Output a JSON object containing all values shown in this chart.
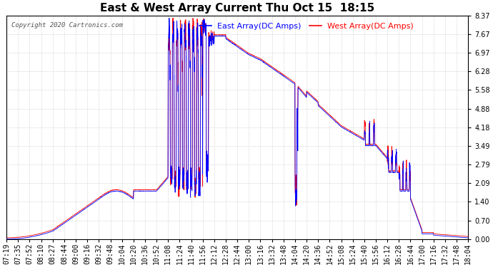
{
  "title": "East & West Array Current Thu Oct 15  18:15",
  "copyright": "Copyright 2020 Cartronics.com",
  "legend_east": "East Array(DC Amps)",
  "legend_west": "West Array(DC Amps)",
  "color_east": "blue",
  "color_west": "red",
  "yticks": [
    0.0,
    0.7,
    1.4,
    2.09,
    2.79,
    3.49,
    4.18,
    4.88,
    5.58,
    6.28,
    6.97,
    7.67,
    8.37
  ],
  "ylim": [
    0.0,
    8.37
  ],
  "xtick_labels": [
    "07:19",
    "07:35",
    "07:52",
    "08:10",
    "08:27",
    "08:44",
    "09:00",
    "09:16",
    "09:32",
    "09:48",
    "10:04",
    "10:20",
    "10:36",
    "10:52",
    "11:08",
    "11:24",
    "11:40",
    "11:56",
    "12:12",
    "12:28",
    "12:44",
    "13:00",
    "13:16",
    "13:32",
    "13:48",
    "14:04",
    "14:20",
    "14:36",
    "14:52",
    "15:08",
    "15:24",
    "15:40",
    "15:56",
    "16:12",
    "16:28",
    "16:44",
    "17:00",
    "17:16",
    "17:32",
    "17:48",
    "18:04"
  ],
  "background_color": "#ffffff",
  "grid_color": "#bbbbbb",
  "title_fontsize": 11,
  "tick_fontsize": 7,
  "legend_fontsize": 8
}
